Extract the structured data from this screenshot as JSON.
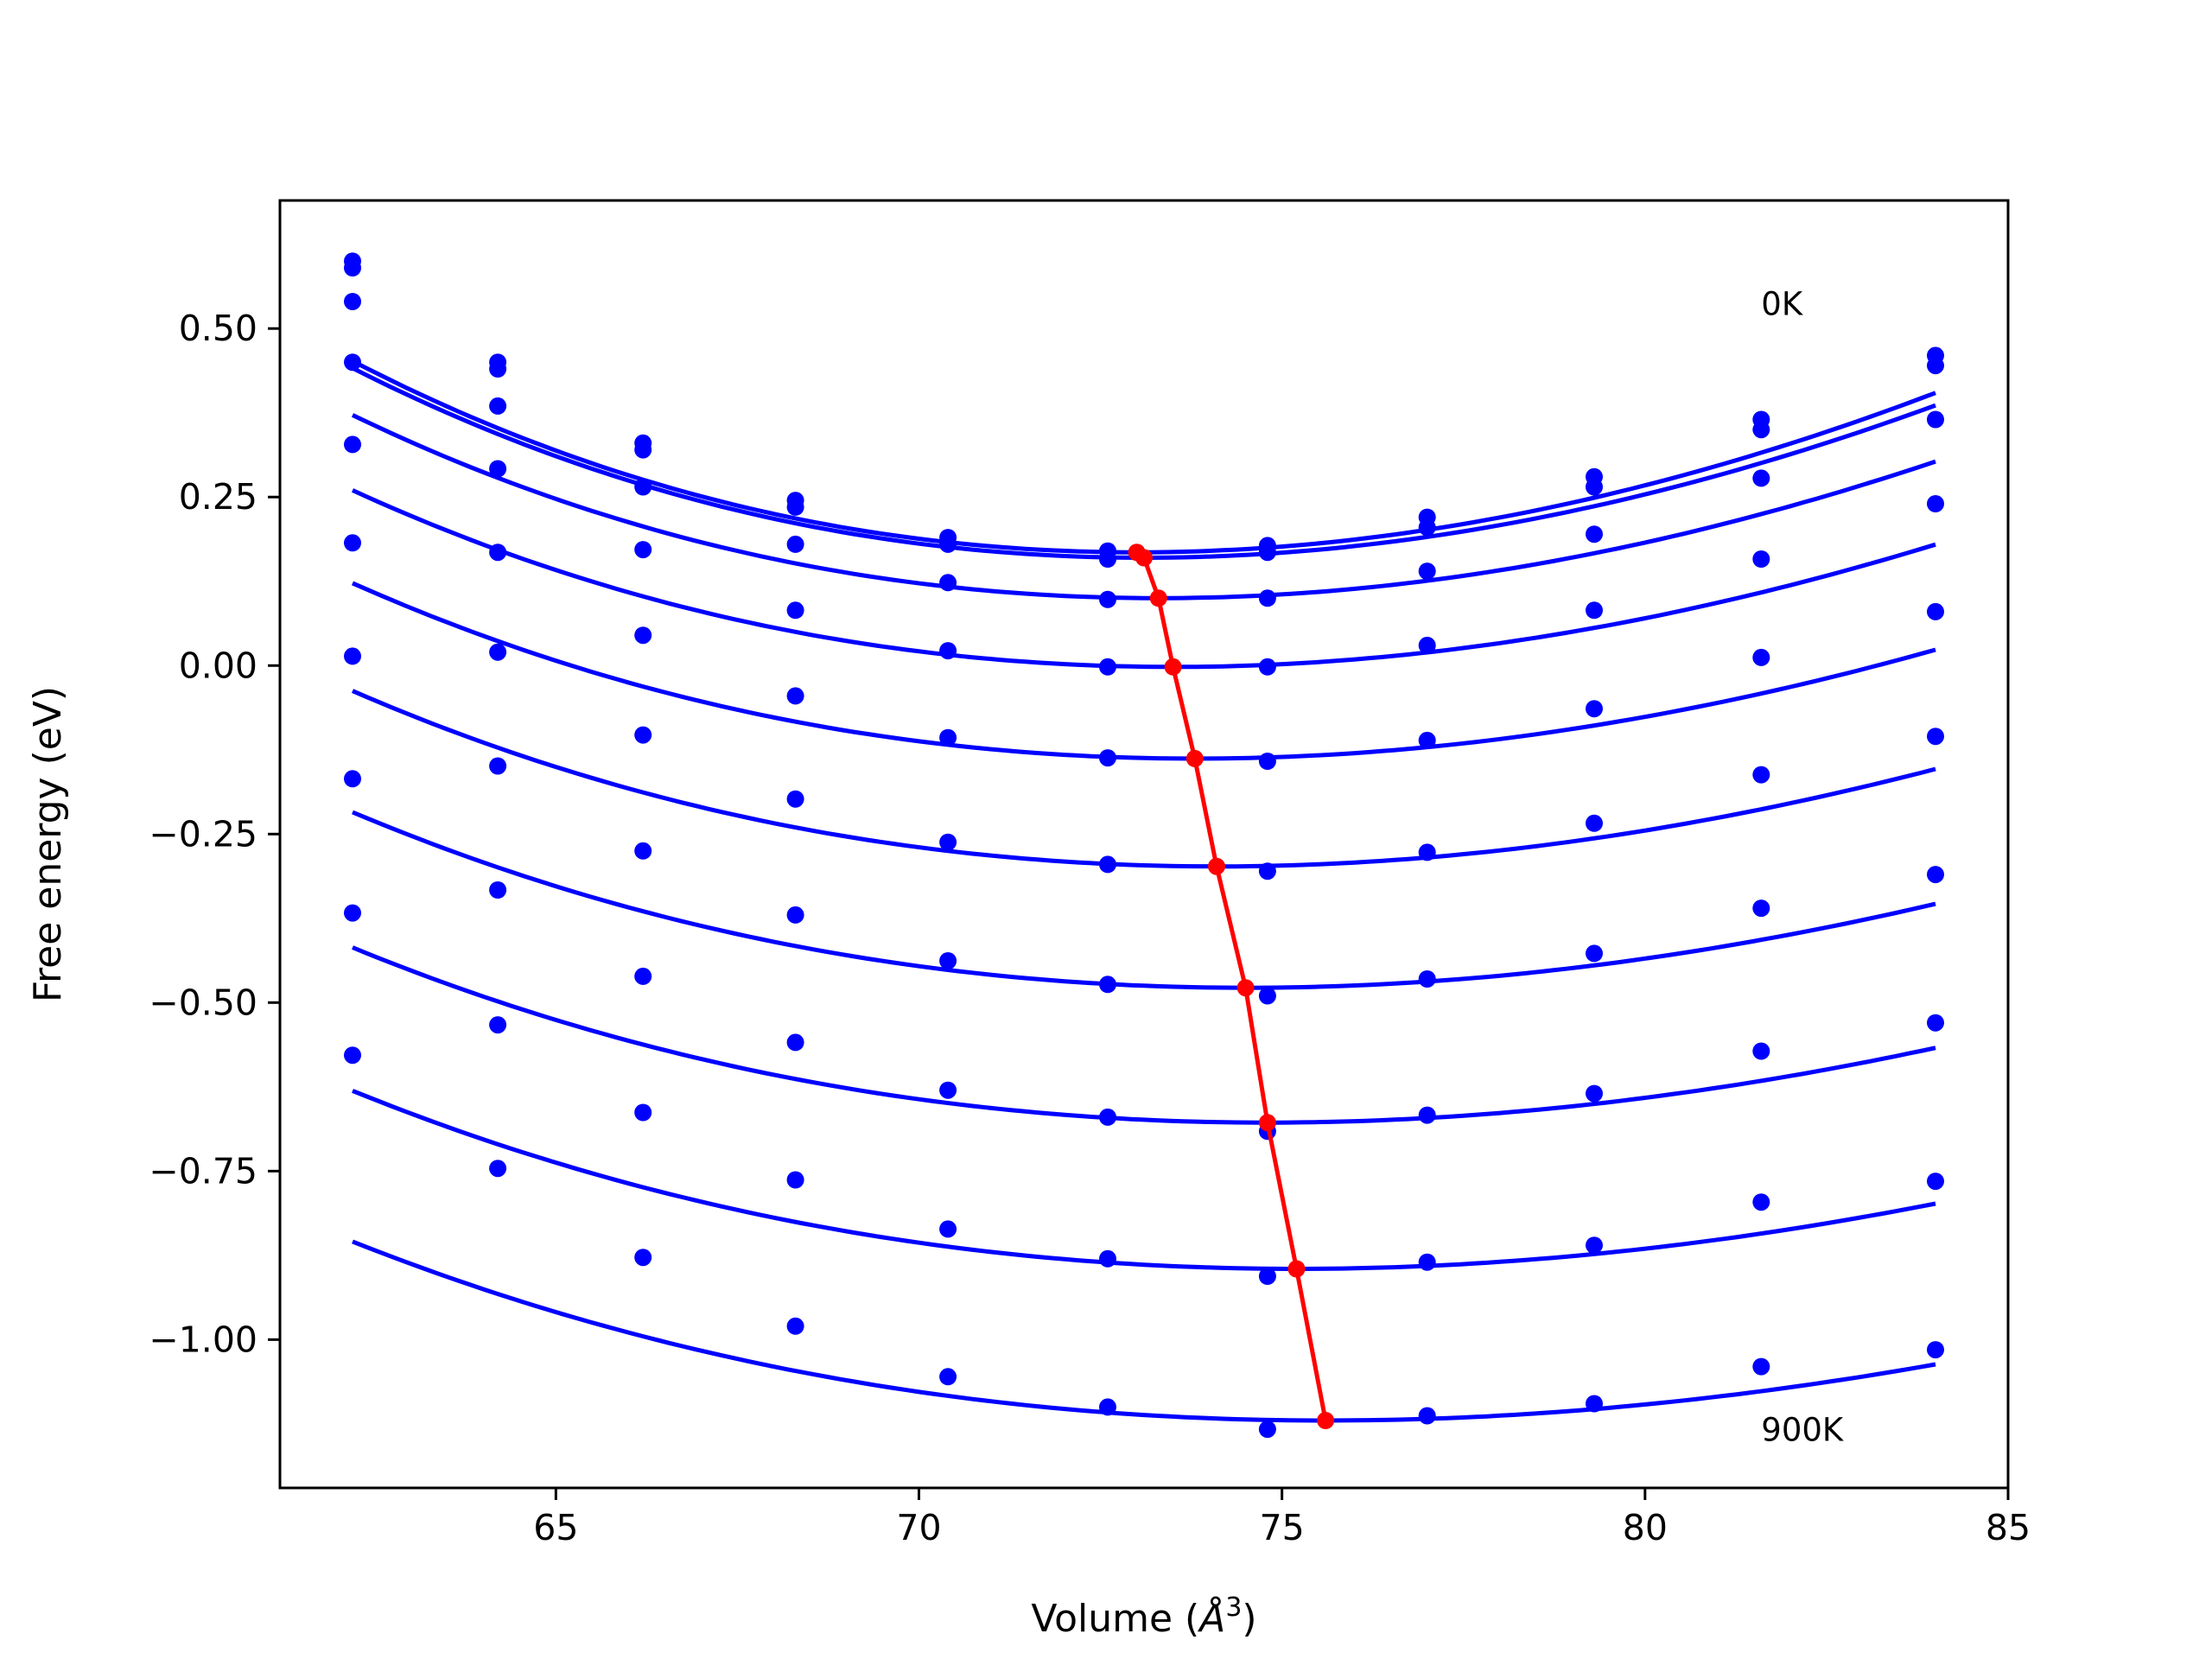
{
  "chart_data": {
    "type": "line",
    "title": "",
    "xlabel": "Volume",
    "xlabel_unit_base": "Å",
    "xlabel_unit_exp": "3",
    "ylabel": "Free energy (eV)",
    "xlim": [
      61.2,
      85.0
    ],
    "ylim": [
      -1.22,
      0.69
    ],
    "xticks": [
      65,
      70,
      75,
      80,
      85
    ],
    "xtick_labels": [
      "65",
      "70",
      "75",
      "80",
      "85"
    ],
    "yticks": [
      -1.0,
      -0.75,
      -0.5,
      -0.25,
      0.0,
      0.25,
      0.5
    ],
    "ytick_labels": [
      "−1.00",
      "−0.75",
      "−0.50",
      "−0.25",
      "0.00",
      "0.25",
      "0.50"
    ],
    "grid": false,
    "legend": "none",
    "annotations": [
      {
        "text": "0K",
        "x": 81.6,
        "y": 0.52
      },
      {
        "text": "900K",
        "x": 81.6,
        "y": -1.15
      }
    ],
    "colors": {
      "fit_curves": "#0000ff",
      "data_points": "#0000ff",
      "minima_path": "#ff0000"
    },
    "x": [
      62.2,
      64.2,
      66.2,
      68.3,
      70.4,
      72.6,
      74.8,
      77.0,
      79.3,
      81.6,
      84.0
    ],
    "series": [
      {
        "points": [
          0.6,
          0.45,
          0.33,
          0.245,
          0.19,
          0.17,
          0.178,
          0.22,
          0.28,
          0.365,
          0.46
        ],
        "fit": {
          "vmin": 73.0,
          "emin": 0.168,
          "a": 0.00217
        }
      },
      {
        "points": [
          0.59,
          0.44,
          0.32,
          0.235,
          0.18,
          0.158,
          0.168,
          0.205,
          0.265,
          0.35,
          0.445
        ],
        "fit": {
          "vmin": 73.1,
          "emin": 0.16,
          "a": 0.00211
        }
      },
      {
        "points": [
          0.54,
          0.385,
          0.265,
          0.18,
          0.123,
          0.098,
          0.1,
          0.14,
          0.195,
          0.278,
          0.365
        ],
        "fit": {
          "vmin": 73.3,
          "emin": 0.1,
          "a": 0.00196
        }
      },
      {
        "points": [
          0.45,
          0.292,
          0.172,
          0.082,
          0.022,
          -0.002,
          -0.002,
          0.03,
          0.082,
          0.158,
          0.24
        ],
        "fit": {
          "vmin": 73.5,
          "emin": -0.002,
          "a": 0.00182
        }
      },
      {
        "points": [
          0.328,
          0.168,
          0.045,
          -0.045,
          -0.107,
          -0.137,
          -0.142,
          -0.111,
          -0.064,
          0.012,
          0.08
        ],
        "fit": {
          "vmin": 73.8,
          "emin": -0.138,
          "a": 0.00171
        }
      },
      {
        "points": [
          0.182,
          0.02,
          -0.103,
          -0.198,
          -0.262,
          -0.295,
          -0.305,
          -0.277,
          -0.234,
          -0.162,
          -0.105
        ],
        "fit": {
          "vmin": 74.1,
          "emin": -0.298,
          "a": 0.00162
        }
      },
      {
        "points": [
          0.014,
          -0.149,
          -0.275,
          -0.37,
          -0.438,
          -0.473,
          -0.49,
          -0.465,
          -0.427,
          -0.36,
          -0.31
        ],
        "fit": {
          "vmin": 74.5,
          "emin": -0.478,
          "a": 0.00151
        }
      },
      {
        "points": [
          -0.168,
          -0.333,
          -0.461,
          -0.559,
          -0.63,
          -0.67,
          -0.691,
          -0.667,
          -0.635,
          -0.572,
          -0.53
        ],
        "fit": {
          "vmin": 74.8,
          "emin": -0.678,
          "a": 0.00143
        }
      },
      {
        "points": [
          -0.367,
          -0.533,
          -0.663,
          -0.763,
          -0.836,
          -0.88,
          -0.906,
          -0.885,
          -0.86,
          -0.796,
          -0.765
        ],
        "fit": {
          "vmin": 75.2,
          "emin": -0.895,
          "a": 0.00136
        }
      },
      {
        "points": [
          -0.578,
          -0.746,
          -0.878,
          -0.98,
          -1.055,
          -1.1,
          -1.133,
          -1.113,
          -1.095,
          -1.04,
          -1.015
        ],
        "fit": {
          "vmin": 75.6,
          "emin": -1.12,
          "a": 0.00128
        }
      }
    ],
    "minima_path": {
      "x": [
        73.0,
        73.1,
        73.3,
        73.5,
        73.8,
        74.1,
        74.5,
        74.8,
        75.2,
        75.6
      ],
      "y": [
        0.168,
        0.16,
        0.1,
        -0.002,
        -0.138,
        -0.298,
        -0.478,
        -0.678,
        -0.895,
        -1.12
      ]
    }
  }
}
